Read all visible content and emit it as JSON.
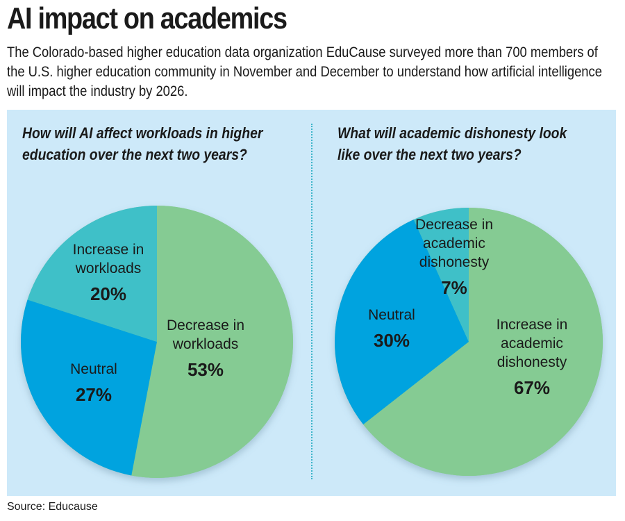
{
  "header": {
    "title": "AI impact on academics",
    "subtitle": "The Colorado-based higher education data organization EduCause surveyed more than 700 members of the U.S. higher education community in November and December to understand how artificial intelligence will impact the industry by 2026."
  },
  "footer": {
    "source": "Source: Educause"
  },
  "colors": {
    "panel": "#cde9f9",
    "green": "#85cb93",
    "blue": "#00a3df",
    "teal": "#3fc0c8"
  },
  "chart_data": [
    {
      "type": "pie",
      "title": "How will AI affect workloads in higher education over the next two years?",
      "slices": [
        {
          "label": "Decrease in workloads",
          "lines": [
            "Decrease in",
            "workloads"
          ],
          "value": 53,
          "display": "53%",
          "color": "#85cb93"
        },
        {
          "label": "Neutral",
          "lines": [
            "Neutral"
          ],
          "value": 27,
          "display": "27%",
          "color": "#00a3df"
        },
        {
          "label": "Increase in workloads",
          "lines": [
            "Increase in",
            "workloads"
          ],
          "value": 20,
          "display": "20%",
          "color": "#3fc0c8"
        }
      ],
      "start": "top",
      "direction": "clockwise"
    },
    {
      "type": "pie",
      "title": "What will academic dishonesty look like over the next two years?",
      "slices": [
        {
          "label": "Increase in academic dishonesty",
          "lines": [
            "Increase in",
            "academic",
            "dishonesty"
          ],
          "value": 67,
          "display": "67%",
          "color": "#85cb93"
        },
        {
          "label": "Neutral",
          "lines": [
            "Neutral"
          ],
          "value": 30,
          "display": "30%",
          "color": "#00a3df"
        },
        {
          "label": "Decrease in academic dishonesty",
          "lines": [
            "Decrease in",
            "academic",
            "dishonesty"
          ],
          "value": 7,
          "display": "7%",
          "color": "#3fc0c8"
        }
      ],
      "start": "top",
      "direction": "clockwise"
    }
  ]
}
